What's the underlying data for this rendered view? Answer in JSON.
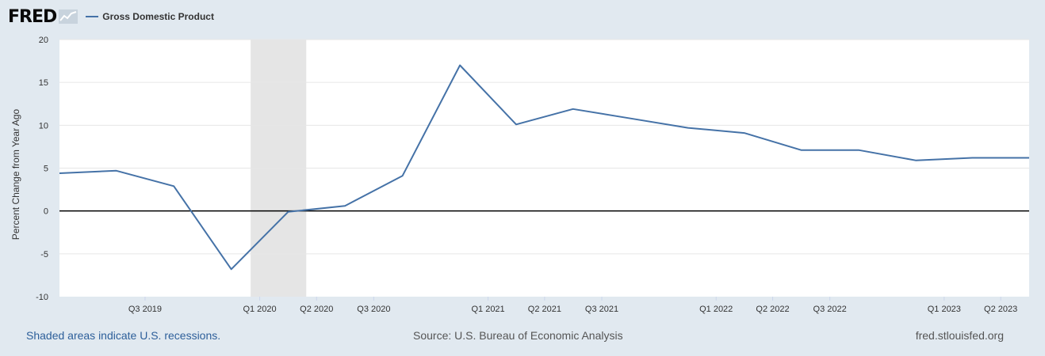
{
  "header": {
    "logo": "FRED",
    "series_label": "Gross Domestic Product"
  },
  "footer": {
    "recession_note": "Shaded areas indicate U.S. recessions.",
    "source": "Source: U.S. Bureau of Economic Analysis",
    "site": "fred.stlouisfed.org"
  },
  "colors": {
    "series": "#4572a7",
    "recession": "#e5e5e5",
    "background": "#e1e9f0",
    "plot": "#ffffff"
  },
  "chart_data": {
    "type": "line",
    "ylabel": "Percent Change from Year Ago",
    "ylim": [
      -10,
      20
    ],
    "yticks": [
      -10,
      -5,
      0,
      5,
      10,
      15,
      20
    ],
    "xlim": [
      "2019-04-01",
      "2023-07-01"
    ],
    "xticks": [
      "Q3 2019",
      "Q1 2020",
      "Q2 2020",
      "Q3 2020",
      "Q1 2021",
      "Q2 2021",
      "Q3 2021",
      "Q1 2022",
      "Q2 2022",
      "Q3 2022",
      "Q1 2023",
      "Q2 2023"
    ],
    "grid": true,
    "recessions": [
      {
        "start": "2020-02-01",
        "end": "2020-04-30"
      }
    ],
    "series": [
      {
        "name": "Gross Domestic Product",
        "x": [
          "2019-04-01",
          "2019-07-01",
          "2019-10-01",
          "2020-01-01",
          "2020-04-01",
          "2020-07-01",
          "2020-10-01",
          "2021-01-01",
          "2021-04-01",
          "2021-07-01",
          "2021-10-01",
          "2022-01-01",
          "2022-04-01",
          "2022-07-01",
          "2022-10-01",
          "2023-01-01",
          "2023-04-01",
          "2023-07-01"
        ],
        "y": [
          4.4,
          4.7,
          2.9,
          -6.8,
          -0.1,
          0.6,
          4.1,
          17.0,
          10.1,
          11.9,
          10.8,
          9.7,
          9.1,
          7.1,
          7.1,
          5.9,
          6.2,
          6.2
        ]
      }
    ]
  }
}
